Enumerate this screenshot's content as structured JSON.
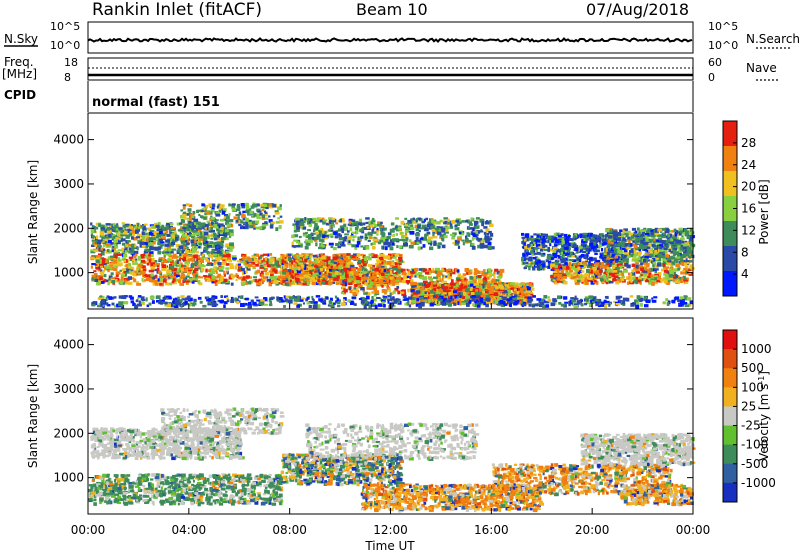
{
  "header": {
    "station": "Rankin Inlet (fitACF)",
    "beam": "Beam 10",
    "date": "07/Aug/2018"
  },
  "noise_panel": {
    "left_label": "N.Sky",
    "right_label": "N.Search",
    "left_ticks": [
      "10^5",
      "10^0"
    ],
    "right_ticks": [
      "10^5",
      "10^0"
    ]
  },
  "freq_panel": {
    "left_label_1": "Freq.",
    "left_label_2": "[MHz]",
    "right_label": "Nave",
    "left_ticks": [
      "18",
      "8"
    ],
    "right_ticks": [
      "60",
      "0"
    ]
  },
  "cpid_panel": {
    "label": "CPID",
    "value": "normal (fast) 151"
  },
  "chart_data": [
    {
      "type": "heatmap",
      "title": "",
      "xlabel": "",
      "ylabel": "Slant Range [km]",
      "ylim": [
        180,
        4600
      ],
      "yticks": [
        "1000",
        "2000",
        "3000",
        "4000"
      ],
      "colorbar_label": "Power [dB]",
      "colorbar_ticks": [
        "4",
        "8",
        "12",
        "16",
        "20",
        "24",
        "28"
      ],
      "colorbar_range": [
        0,
        32
      ],
      "colors": [
        "#0018ff",
        "#2a4aa8",
        "#3d8c5a",
        "#88d040",
        "#f0c020",
        "#f08010",
        "#e62010"
      ]
    },
    {
      "type": "heatmap",
      "title": "",
      "xlabel": "Time UT",
      "ylabel": "Slant Range [km]",
      "ylim": [
        180,
        4600
      ],
      "xlim": [
        0,
        24
      ],
      "xticks": [
        "00:00",
        "04:00",
        "08:00",
        "12:00",
        "16:00",
        "20:00",
        "00:00"
      ],
      "yticks": [
        "1000",
        "2000",
        "3000",
        "4000"
      ],
      "colorbar_label": "Velocity [m s^-1]",
      "colorbar_ticks": [
        "1000",
        "500",
        "100",
        "25",
        "-25",
        "-100",
        "-500",
        "-1000"
      ],
      "colors": [
        "#1830c0",
        "#3060a0",
        "#3d8c5a",
        "#60c030",
        "#c8c8c4",
        "#f0b020",
        "#f08010",
        "#e05010",
        "#e01010"
      ]
    }
  ]
}
